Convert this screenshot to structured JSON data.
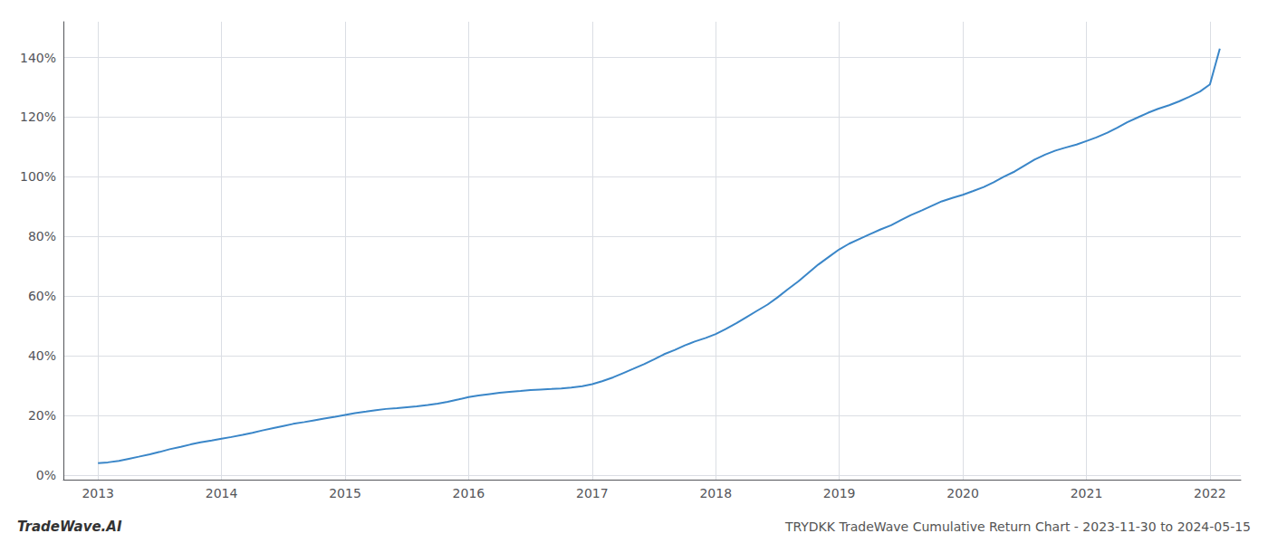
{
  "chart_data": {
    "type": "line",
    "title": "TRYDKK TradeWave Cumulative Return Chart - 2023-11-30 to 2024-05-15",
    "annotations": [
      "TradeWave.AI"
    ],
    "color": "#3a86c8",
    "grid": true,
    "x": [
      2013.0,
      2013.08,
      2013.17,
      2013.25,
      2013.33,
      2013.42,
      2013.5,
      2013.58,
      2013.67,
      2013.75,
      2013.83,
      2013.92,
      2014.0,
      2014.08,
      2014.17,
      2014.25,
      2014.33,
      2014.42,
      2014.5,
      2014.58,
      2014.67,
      2014.75,
      2014.83,
      2014.92,
      2015.0,
      2015.08,
      2015.17,
      2015.25,
      2015.33,
      2015.42,
      2015.5,
      2015.58,
      2015.67,
      2015.75,
      2015.83,
      2015.92,
      2016.0,
      2016.08,
      2016.17,
      2016.25,
      2016.33,
      2016.42,
      2016.5,
      2016.58,
      2016.67,
      2016.75,
      2016.83,
      2016.92,
      2017.0,
      2017.08,
      2017.17,
      2017.25,
      2017.33,
      2017.42,
      2017.5,
      2017.58,
      2017.67,
      2017.75,
      2017.83,
      2017.92,
      2018.0,
      2018.08,
      2018.17,
      2018.25,
      2018.33,
      2018.42,
      2018.5,
      2018.58,
      2018.67,
      2018.75,
      2018.83,
      2018.92,
      2019.0,
      2019.08,
      2019.17,
      2019.25,
      2019.33,
      2019.42,
      2019.5,
      2019.58,
      2019.67,
      2019.75,
      2019.83,
      2019.92,
      2020.0,
      2020.08,
      2020.17,
      2020.25,
      2020.33,
      2020.42,
      2020.5,
      2020.58,
      2020.67,
      2020.75,
      2020.83,
      2020.92,
      2021.0,
      2021.08,
      2021.17,
      2021.25,
      2021.33,
      2021.42,
      2021.5,
      2021.58,
      2021.67,
      2021.75,
      2021.83,
      2021.92,
      2022.0,
      2022.08
    ],
    "values": [
      0.04,
      0.043,
      0.048,
      0.055,
      0.062,
      0.07,
      0.078,
      0.087,
      0.095,
      0.103,
      0.11,
      0.116,
      0.122,
      0.128,
      0.135,
      0.142,
      0.15,
      0.158,
      0.165,
      0.172,
      0.178,
      0.184,
      0.19,
      0.196,
      0.202,
      0.208,
      0.213,
      0.218,
      0.222,
      0.225,
      0.228,
      0.231,
      0.235,
      0.24,
      0.246,
      0.254,
      0.262,
      0.267,
      0.272,
      0.276,
      0.279,
      0.282,
      0.285,
      0.287,
      0.289,
      0.291,
      0.294,
      0.298,
      0.305,
      0.315,
      0.328,
      0.342,
      0.356,
      0.372,
      0.388,
      0.405,
      0.42,
      0.435,
      0.448,
      0.46,
      0.473,
      0.49,
      0.51,
      0.53,
      0.55,
      0.572,
      0.596,
      0.622,
      0.65,
      0.678,
      0.706,
      0.733,
      0.757,
      0.776,
      0.793,
      0.808,
      0.823,
      0.838,
      0.855,
      0.872,
      0.888,
      0.903,
      0.918,
      0.93,
      0.94,
      0.952,
      0.966,
      0.982,
      1.0,
      1.018,
      1.038,
      1.058,
      1.075,
      1.088,
      1.098,
      1.108,
      1.12,
      1.132,
      1.148,
      1.165,
      1.183,
      1.2,
      1.215,
      1.228,
      1.24,
      1.253,
      1.268,
      1.286,
      1.31,
      1.43
    ],
    "xlim": [
      2012.72,
      2022.25
    ],
    "ylim": [
      -0.015,
      1.52
    ],
    "xticks": [
      2013,
      2014,
      2015,
      2016,
      2017,
      2018,
      2019,
      2020,
      2021,
      2022
    ],
    "yticks": [
      {
        "value": 0.0,
        "label": "0%"
      },
      {
        "value": 0.2,
        "label": "20%"
      },
      {
        "value": 0.4,
        "label": "40%"
      },
      {
        "value": 0.6,
        "label": "60%"
      },
      {
        "value": 0.8,
        "label": "80%"
      },
      {
        "value": 1.0,
        "label": "100%"
      },
      {
        "value": 1.2,
        "label": "120%"
      },
      {
        "value": 1.4,
        "label": "140%"
      }
    ]
  }
}
